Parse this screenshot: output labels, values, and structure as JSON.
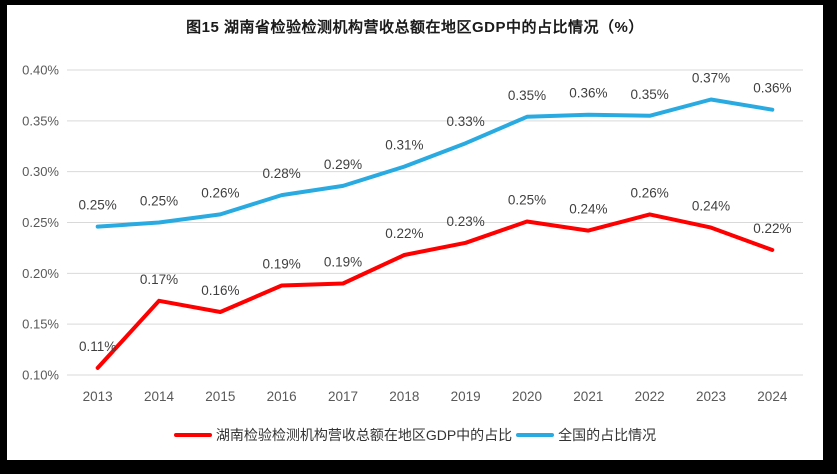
{
  "title": "图15 湖南省检验检测机构营收总额在地区GDP中的占比情况（%）",
  "colors": {
    "hunan_line": "#FF0000",
    "national_line": "#29ABE2",
    "gridline": "#D9D9D9",
    "axis_text": "#595959",
    "data_label_text": "#404040",
    "frame": "#000000",
    "panel_bg": "#FFFFFF"
  },
  "chart_data": {
    "type": "line",
    "title": "图15 湖南省检验检测机构营收总额在地区GDP中的占比情况（%）",
    "x": [
      "2013",
      "2014",
      "2015",
      "2016",
      "2017",
      "2018",
      "2019",
      "2020",
      "2021",
      "2022",
      "2023",
      "2024"
    ],
    "yticks": [
      "0.40%",
      "0.35%",
      "0.30%",
      "0.25%",
      "0.20%",
      "0.15%",
      "0.10%"
    ],
    "ylim": [
      0.1,
      0.4
    ],
    "unit": "%",
    "grid": true,
    "legend_position": "bottom",
    "series": [
      {
        "name": "湖南检验检测机构营收总额在地区GDP中的占比",
        "color": "#FF0000",
        "values": [
          0.11,
          0.17,
          0.16,
          0.19,
          0.19,
          0.22,
          0.23,
          0.25,
          0.24,
          0.26,
          0.24,
          0.22
        ],
        "labels": [
          "0.11%",
          "0.17%",
          "0.16%",
          "0.19%",
          "0.19%",
          "0.22%",
          "0.23%",
          "0.25%",
          "0.24%",
          "0.26%",
          "0.24%",
          "0.22%"
        ],
        "plot_values": [
          0.107,
          0.173,
          0.162,
          0.188,
          0.19,
          0.218,
          0.23,
          0.251,
          0.242,
          0.258,
          0.245,
          0.223
        ]
      },
      {
        "name": "全国的占比情况",
        "color": "#29ABE2",
        "values": [
          0.25,
          0.25,
          0.26,
          0.28,
          0.29,
          0.31,
          0.33,
          0.35,
          0.36,
          0.35,
          0.37,
          0.36
        ],
        "labels": [
          "0.25%",
          "0.25%",
          "0.26%",
          "0.28%",
          "0.29%",
          "0.31%",
          "0.33%",
          "0.35%",
          "0.36%",
          "0.35%",
          "0.37%",
          "0.36%"
        ],
        "plot_values": [
          0.246,
          0.25,
          0.258,
          0.277,
          0.286,
          0.305,
          0.328,
          0.354,
          0.356,
          0.355,
          0.371,
          0.361
        ]
      }
    ]
  }
}
